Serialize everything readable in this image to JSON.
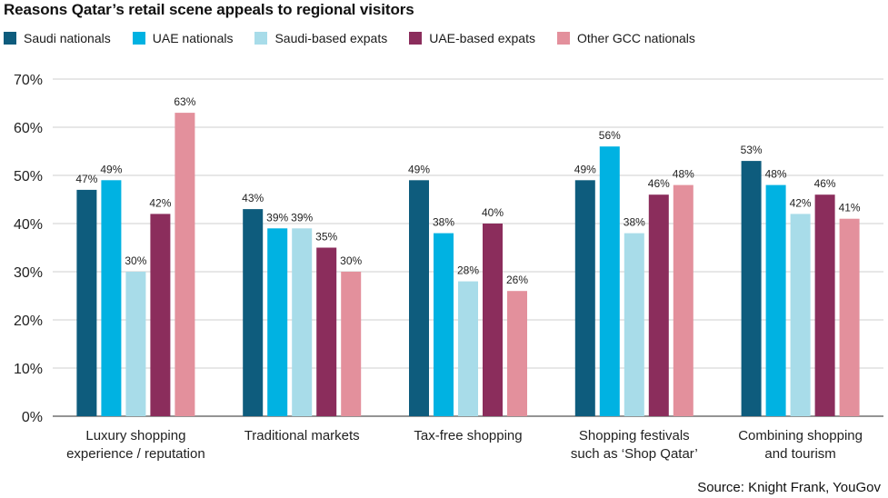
{
  "chart_data": {
    "type": "bar",
    "title": "Reasons Qatar’s retail scene appeals to regional visitors",
    "categories": [
      [
        "Luxury shopping",
        "experience / reputation"
      ],
      [
        "Traditional markets"
      ],
      [
        "Tax-free shopping"
      ],
      [
        "Shopping festivals",
        "such as ‘Shop Qatar’"
      ],
      [
        "Combining shopping",
        "and tourism"
      ]
    ],
    "series": [
      {
        "name": "Saudi nationals",
        "color": "#0e5c7d",
        "values": [
          47,
          43,
          49,
          49,
          53
        ]
      },
      {
        "name": "UAE nationals",
        "color": "#00b2e2",
        "values": [
          49,
          39,
          38,
          56,
          48
        ]
      },
      {
        "name": "Saudi-based expats",
        "color": "#a8dce9",
        "values": [
          30,
          39,
          28,
          38,
          42
        ]
      },
      {
        "name": "UAE-based expats",
        "color": "#8b2d5c",
        "values": [
          42,
          35,
          40,
          46,
          46
        ]
      },
      {
        "name": "Other GCC nationals",
        "color": "#e3909c",
        "values": [
          63,
          30,
          26,
          48,
          41
        ]
      }
    ],
    "y_ticks": [
      "0%",
      "10%",
      "20%",
      "30%",
      "40%",
      "50%",
      "60%",
      "70%"
    ],
    "ylim": [
      0,
      70
    ],
    "value_suffix": "%",
    "legend_position": "top",
    "grid": "horizontal"
  },
  "source": "Source: Knight Frank, YouGov"
}
